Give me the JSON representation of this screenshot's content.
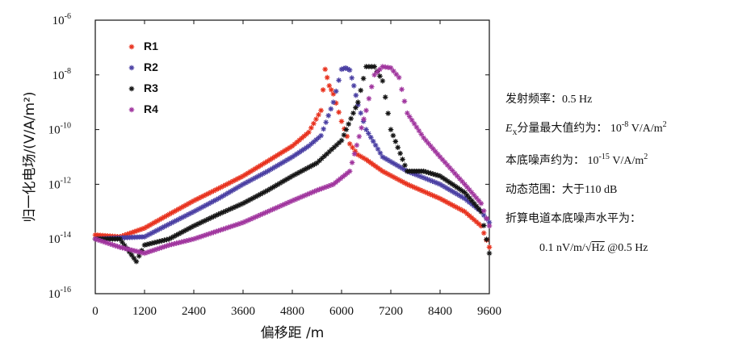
{
  "chart_data": {
    "type": "scatter",
    "xlabel": "偏移距 /m",
    "ylabel": "归一化电场/(V/A/m²)",
    "xlim": [
      0,
      9600
    ],
    "ylim_log10": [
      -16,
      -6
    ],
    "y_scale": "log",
    "x_ticks": [
      "0",
      "1200",
      "2400",
      "3600",
      "4800",
      "6000",
      "7200",
      "8400",
      "9600"
    ],
    "y_ticks": [
      {
        "base": "10",
        "exp": "-6"
      },
      {
        "base": "10",
        "exp": "-8"
      },
      {
        "base": "10",
        "exp": "-10"
      },
      {
        "base": "10",
        "exp": "-12"
      },
      {
        "base": "10",
        "exp": "-14"
      },
      {
        "base": "10",
        "exp": "-16"
      }
    ],
    "legend_position": "top-left",
    "grid": false,
    "marker": "asterisk",
    "series": [
      {
        "name": "R1",
        "color": "#e8321e",
        "x": [
          0,
          600,
          1200,
          1800,
          2400,
          3000,
          3600,
          4200,
          4800,
          5200,
          5500,
          5600,
          5700,
          5800,
          6000,
          6200,
          6400,
          6600,
          7000,
          7600,
          8400,
          9000,
          9400,
          9600
        ],
        "y": [
          1.4e-14,
          1.2e-14,
          2.5e-14,
          8e-14,
          2.5e-13,
          7e-13,
          2e-12,
          7e-12,
          2.5e-11,
          8e-11,
          5e-10,
          1.6e-08,
          4e-09,
          2e-09,
          2e-10,
          3e-11,
          1.2e-11,
          8e-12,
          3e-12,
          1e-12,
          3e-13,
          1e-13,
          3e-14,
          5e-15
        ]
      },
      {
        "name": "R2",
        "color": "#4a3fa3",
        "x": [
          0,
          600,
          1200,
          1800,
          2400,
          3000,
          3600,
          4200,
          4800,
          5200,
          5500,
          5800,
          6000,
          6100,
          6200,
          6300,
          6400,
          6600,
          7000,
          7600,
          8400,
          9000,
          9400,
          9600
        ],
        "y": [
          1e-14,
          1.1e-14,
          1.2e-14,
          3.5e-14,
          1e-13,
          3e-13,
          1e-12,
          3e-12,
          1e-11,
          2.5e-11,
          6e-11,
          1e-09,
          1.6e-08,
          1.8e-08,
          1.5e-08,
          4e-09,
          8e-10,
          1e-10,
          1e-11,
          3e-12,
          1e-12,
          3e-13,
          1e-13,
          4e-14
        ]
      },
      {
        "name": "R3",
        "color": "#141414",
        "x": [
          0,
          600,
          1000,
          1200,
          1800,
          2400,
          3000,
          3600,
          4200,
          4800,
          5400,
          6000,
          6400,
          6600,
          6800,
          7000,
          7200,
          7600,
          8000,
          8400,
          9000,
          9400,
          9600
        ],
        "y": [
          1e-14,
          1e-14,
          1.5e-15,
          6e-15,
          1e-14,
          3e-14,
          8e-14,
          2e-13,
          6e-13,
          2e-12,
          6e-12,
          4e-11,
          1e-09,
          2e-08,
          2e-08,
          6e-09,
          1e-10,
          3e-12,
          3e-12,
          2e-12,
          5e-13,
          1e-13,
          3e-15
        ]
      },
      {
        "name": "R4",
        "color": "#a0359e",
        "x": [
          0,
          600,
          1200,
          1800,
          2400,
          3000,
          3600,
          4200,
          4800,
          5400,
          5800,
          6200,
          6600,
          6800,
          7000,
          7200,
          7400,
          7600,
          8000,
          8400,
          9000,
          9400,
          9600
        ],
        "y": [
          1e-14,
          5e-15,
          3e-15,
          6e-15,
          1e-14,
          2e-14,
          4e-14,
          1e-13,
          2.5e-13,
          6e-13,
          1e-12,
          3e-12,
          5e-10,
          1e-08,
          2e-08,
          1.8e-08,
          8e-09,
          4e-10,
          5e-11,
          1e-11,
          1e-12,
          2e-13,
          3e-14
        ]
      }
    ]
  },
  "info": {
    "line1": "发射频率：0.5 Hz",
    "line2_var": "E",
    "line2_sub": "x",
    "line2_text": "分量最大值约为：",
    "line2_base": "10",
    "line2_exp": "-8",
    "line2_unit": "V/A/m",
    "line2_unit_exp": "2",
    "line3_text": "本底噪声约为：",
    "line3_base": "10",
    "line3_exp": "-15",
    "line3_unit": "V/A/m",
    "line3_unit_exp": "2",
    "line4": "动态范围：大于110 dB",
    "line5": "折算电道本底噪声水平为：",
    "line6_pre": "0.1 nV/m/",
    "line6_sqrt": "√",
    "line6_hz": "Hz",
    "line6_post": "@0.5 Hz"
  }
}
